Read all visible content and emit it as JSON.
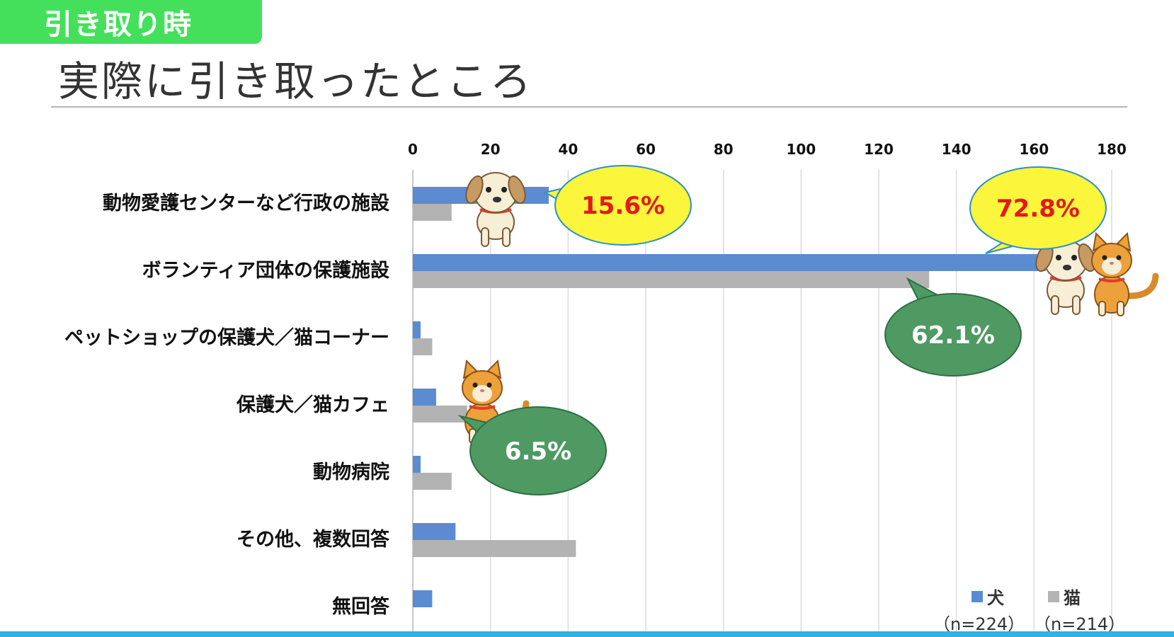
{
  "header": {
    "tag": "引き取り時",
    "title": "実際に引き取ったところ"
  },
  "colors": {
    "dog": "#5b8bd0",
    "cat": "#b3b3b3",
    "callout_yellow": "#fbf53c",
    "callout_green": "#4f9a63",
    "tag_green": "#44e05c",
    "accent_blue": "#2fb3e3"
  },
  "chart_data": {
    "type": "bar",
    "orientation": "horizontal",
    "categories": [
      "動物愛護センターなど行政の施設",
      "ボランティア団体の保護施設",
      "ペットショップの保護犬／猫コーナー",
      "保護犬／猫カフェ",
      "動物病院",
      "その他、複数回答",
      "無回答"
    ],
    "series": [
      {
        "name": "犬",
        "values": [
          35,
          163,
          2,
          6,
          2,
          11,
          5
        ]
      },
      {
        "name": "猫",
        "values": [
          10,
          133,
          5,
          14,
          10,
          42,
          0
        ]
      }
    ],
    "xlim": [
      0,
      180
    ],
    "x_ticks": [
      "0",
      "20",
      "40",
      "60",
      "80",
      "100",
      "120",
      "140",
      "160",
      "180"
    ],
    "x_axis_position": "top",
    "grid": true,
    "legend": {
      "position": "bottom-right",
      "dog_label": "犬",
      "dog_n": "（n=224）",
      "cat_label": "猫",
      "cat_n": "（n=214）"
    },
    "annotations": [
      {
        "text": "15.6%",
        "style": "yellow",
        "category": 0,
        "series": "犬"
      },
      {
        "text": "72.8%",
        "style": "yellow",
        "category": 1,
        "series": "犬"
      },
      {
        "text": "62.1%",
        "style": "green",
        "category": 1,
        "series": "猫"
      },
      {
        "text": "6.5%",
        "style": "green",
        "category": 3,
        "series": "猫"
      }
    ]
  }
}
